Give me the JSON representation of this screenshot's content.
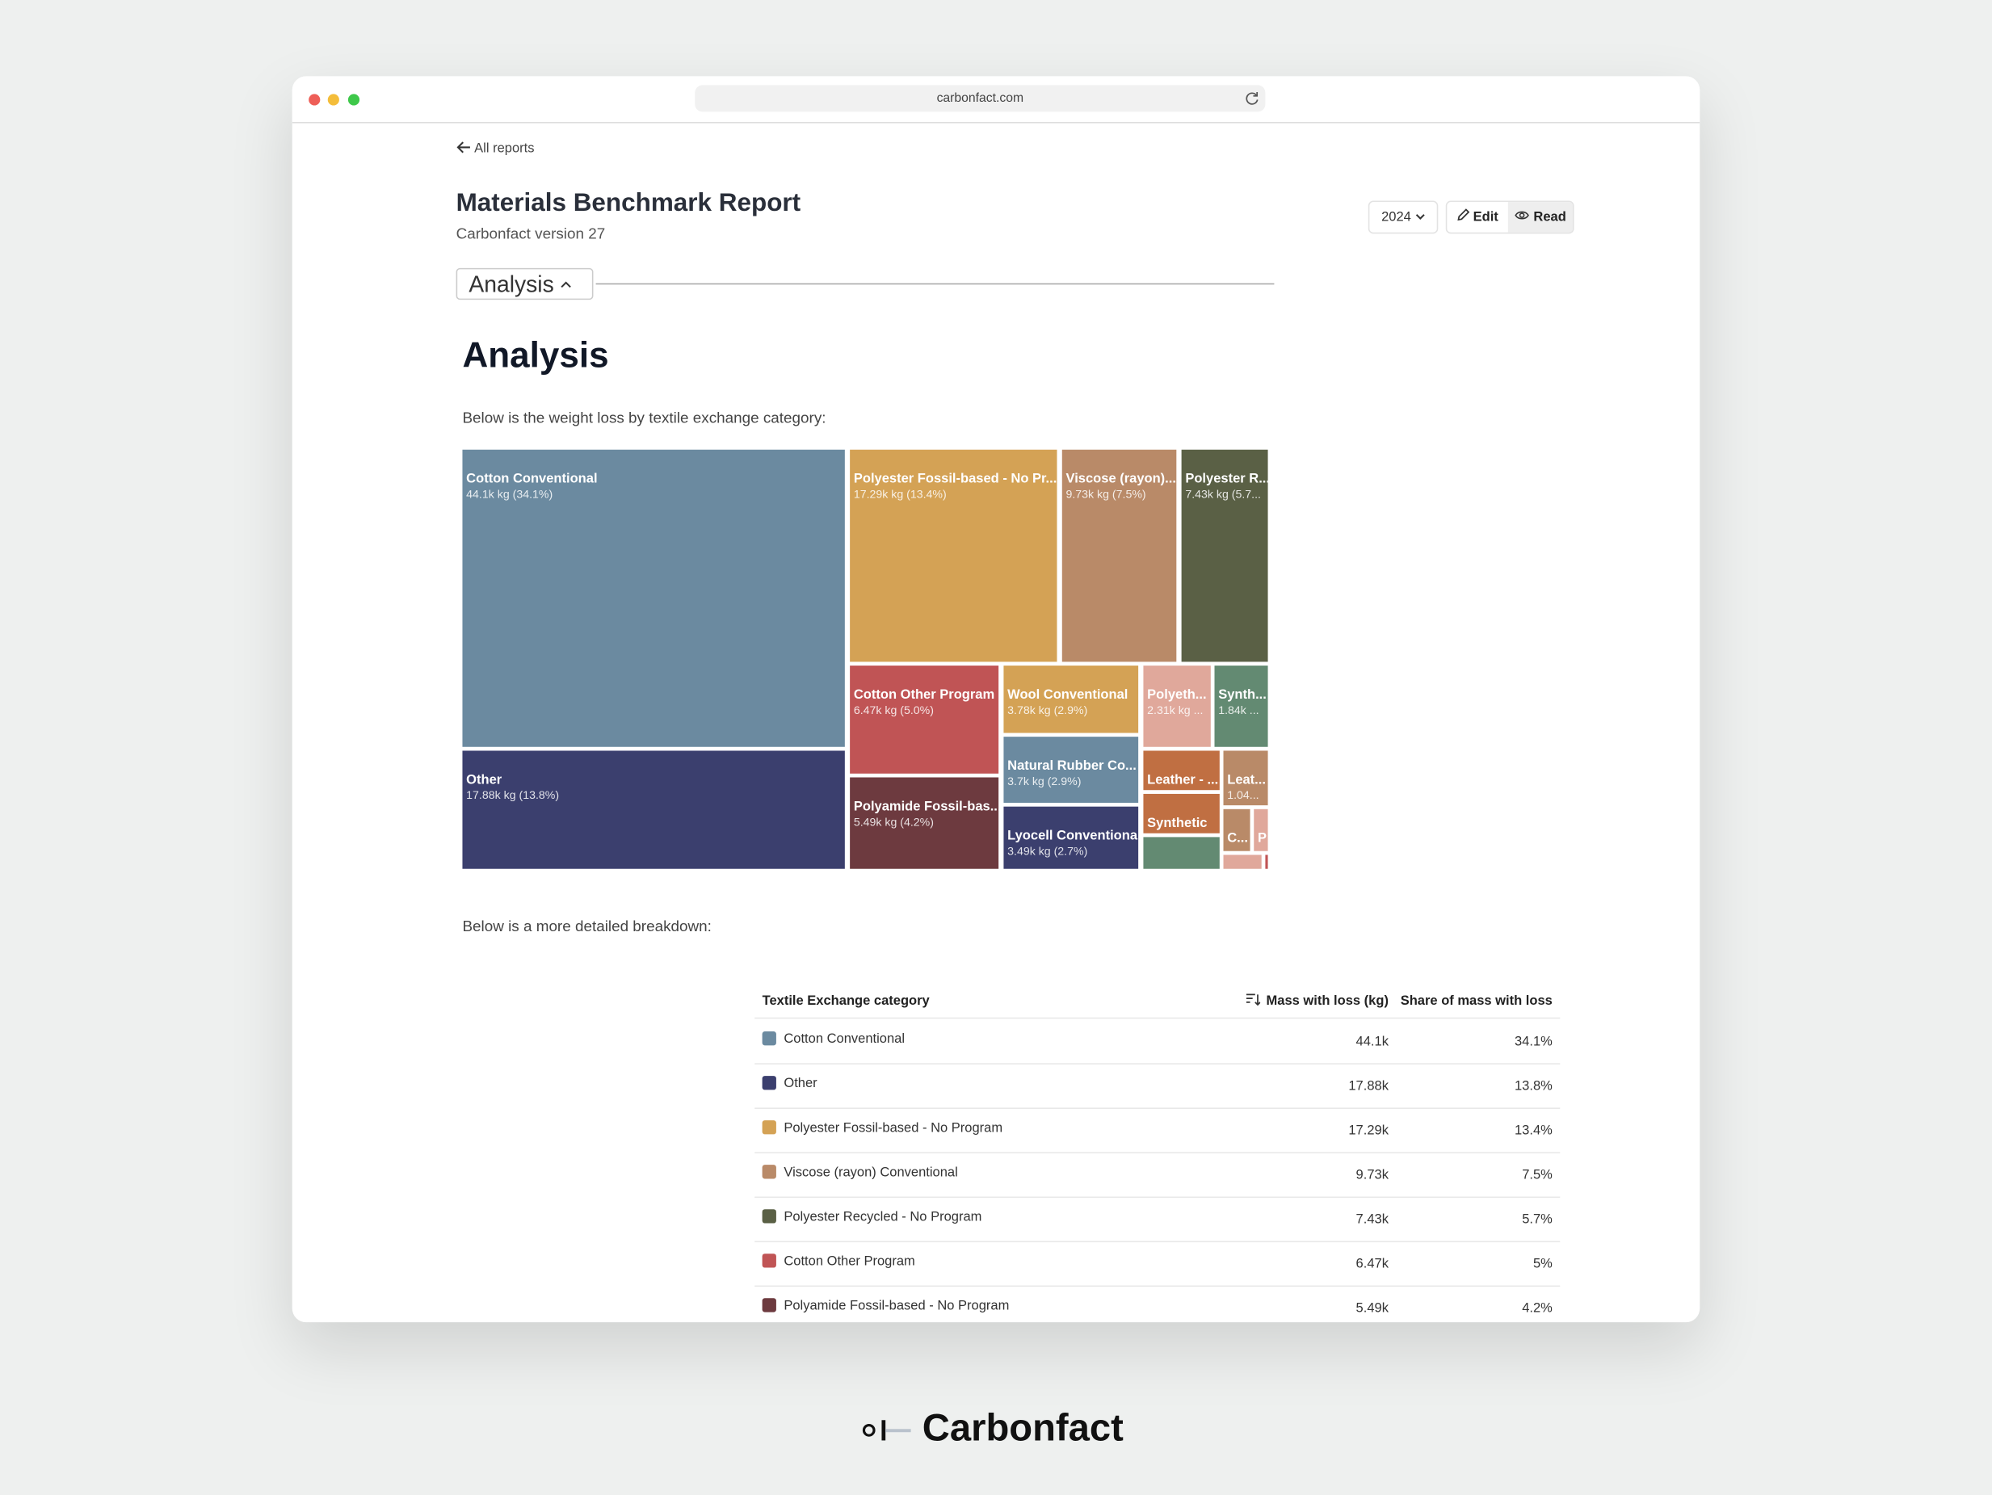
{
  "browser": {
    "url": "carbonfact.com"
  },
  "nav": {
    "back": "All reports"
  },
  "header": {
    "title": "Materials Benchmark Report",
    "subtitle": "Carbonfact version 27",
    "year": "2024",
    "edit": "Edit",
    "read": "Read"
  },
  "section": {
    "toggle": "Analysis",
    "heading": "Analysis",
    "intro": "Below is the weight loss by textile exchange category:",
    "detail": "Below is a more detailed breakdown:"
  },
  "treemap": {
    "tiles": [
      {
        "label": "Cotton Conventional",
        "value": "44.1k kg (34.1%)",
        "color": "#6b8aa0"
      },
      {
        "label": "Other",
        "value": "17.88k kg (13.8%)",
        "color": "#3b3f6e"
      },
      {
        "label": "Polyester Fossil-based - No Pr...",
        "value": "17.29k kg (13.4%)",
        "color": "#d4a255"
      },
      {
        "label": "Viscose (rayon)...",
        "value": "9.73k kg (7.5%)",
        "color": "#b98a68"
      },
      {
        "label": "Polyester R...",
        "value": "7.43k kg (5.7...",
        "color": "#5a6045"
      },
      {
        "label": "Cotton Other Program",
        "value": "6.47k kg (5.0%)",
        "color": "#c05455"
      },
      {
        "label": "Polyamide Fossil-bas...",
        "value": "5.49k kg (4.2%)",
        "color": "#6d3a3f"
      },
      {
        "label": "Wool Conventional",
        "value": "3.78k kg (2.9%)",
        "color": "#d4a255"
      },
      {
        "label": "Natural Rubber Co...",
        "value": "3.7k kg (2.9%)",
        "color": "#6b8aa0"
      },
      {
        "label": "Lyocell Conventional",
        "value": "3.49k kg (2.7%)",
        "color": "#3b3f6e"
      },
      {
        "label": "Polyeth...",
        "value": "2.31k kg ...",
        "color": "#e0a89b"
      },
      {
        "label": "Synth...",
        "value": "1.84k ...",
        "color": "#638a72"
      },
      {
        "label": "Leather - ...",
        "color": "#c06f42"
      },
      {
        "label": "Synthetic",
        "color": "#c06f42"
      },
      {
        "color": "#638a72"
      },
      {
        "label": "Leat...",
        "value": "1.04...",
        "color": "#b98a68"
      },
      {
        "label": "C...",
        "color": "#b98a68"
      },
      {
        "label": "P",
        "color": "#e0a89b"
      },
      {
        "color": "#e0a89b"
      },
      {
        "color": "#c05455"
      }
    ]
  },
  "table": {
    "headers": [
      "Textile Exchange category",
      "Mass with loss (kg)",
      "Share of mass with loss"
    ],
    "rows": [
      {
        "category": "Cotton Conventional",
        "color": "#6b8aa0",
        "mass": "44.1k",
        "share": "34.1%"
      },
      {
        "category": "Other",
        "color": "#3b3f6e",
        "mass": "17.88k",
        "share": "13.8%"
      },
      {
        "category": "Polyester Fossil-based - No Program",
        "color": "#d4a255",
        "mass": "17.29k",
        "share": "13.4%"
      },
      {
        "category": "Viscose (rayon) Conventional",
        "color": "#b98a68",
        "mass": "9.73k",
        "share": "7.5%"
      },
      {
        "category": "Polyester Recycled - No Program",
        "color": "#5a6045",
        "mass": "7.43k",
        "share": "5.7%"
      },
      {
        "category": "Cotton Other Program",
        "color": "#c05455",
        "mass": "6.47k",
        "share": "5%"
      },
      {
        "category": "Polyamide Fossil-based - No Program",
        "color": "#6d3a3f",
        "mass": "5.49k",
        "share": "4.2%"
      }
    ]
  },
  "brand": {
    "name": "Carbonfact"
  }
}
